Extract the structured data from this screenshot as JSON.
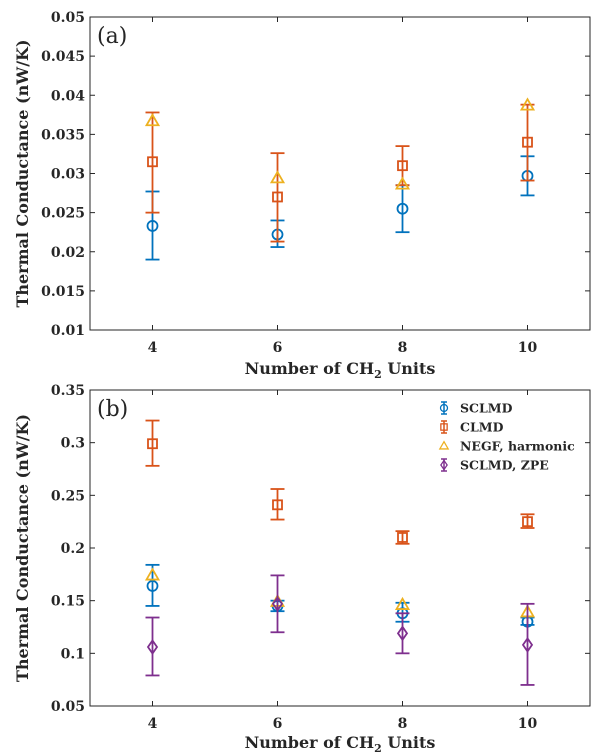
{
  "chart_data": [
    {
      "type": "scatter",
      "panel_label": "(a)",
      "xlabel_prefix": "Number of CH",
      "xlabel_sub": "2",
      "xlabel_suffix": " Units",
      "ylabel": "Thermal Conductance (nW/K)",
      "xlim": [
        3,
        11
      ],
      "ylim": [
        0.01,
        0.05
      ],
      "xticks": [
        "4",
        "6",
        "8",
        "10"
      ],
      "yticks": [
        "0.01",
        "0.015",
        "0.02",
        "0.025",
        "0.03",
        "0.035",
        "0.04",
        "0.045",
        "0.05"
      ],
      "series": [
        {
          "marker": "circle",
          "color": "#0072BD",
          "x": [
            4,
            6,
            8,
            10
          ],
          "y": [
            0.0233,
            0.0222,
            0.0255,
            0.0297
          ],
          "err_low": [
            0.019,
            0.0206,
            0.0225,
            0.0272
          ],
          "err_high": [
            0.0277,
            0.024,
            0.0285,
            0.0322
          ]
        },
        {
          "marker": "square",
          "color": "#D95319",
          "x": [
            4,
            6,
            8,
            10
          ],
          "y": [
            0.0315,
            0.027,
            0.031,
            0.034
          ],
          "err_low": [
            0.025,
            0.0213,
            0.0285,
            0.0291
          ],
          "err_high": [
            0.0378,
            0.0326,
            0.0335,
            0.0388
          ]
        },
        {
          "marker": "triangle",
          "color": "#EDB120",
          "x": [
            4,
            6,
            8,
            10
          ],
          "y": [
            0.0367,
            0.0294,
            0.0286,
            0.0387
          ]
        }
      ]
    },
    {
      "type": "scatter",
      "panel_label": "(b)",
      "xlabel_prefix": "Number of CH",
      "xlabel_sub": "2",
      "xlabel_suffix": " Units",
      "ylabel": "Thermal Conductance (nW/K)",
      "xlim": [
        3,
        11
      ],
      "ylim": [
        0.05,
        0.35
      ],
      "xticks": [
        "4",
        "6",
        "8",
        "10"
      ],
      "yticks": [
        "0.05",
        "0.1",
        "0.15",
        "0.2",
        "0.25",
        "0.3",
        "0.35"
      ],
      "legend_position": "top-right",
      "series": [
        {
          "name": "SCLMD",
          "marker": "circle",
          "color": "#0072BD",
          "x": [
            4,
            6,
            8,
            10
          ],
          "y": [
            0.164,
            0.145,
            0.138,
            0.13
          ],
          "err_low": [
            0.145,
            0.14,
            0.13,
            0.127
          ],
          "err_high": [
            0.184,
            0.15,
            0.148,
            0.134
          ]
        },
        {
          "name": "CLMD",
          "marker": "square",
          "color": "#D95319",
          "x": [
            4,
            6,
            8,
            10
          ],
          "y": [
            0.299,
            0.241,
            0.21,
            0.225
          ],
          "err_low": [
            0.278,
            0.227,
            0.204,
            0.219
          ],
          "err_high": [
            0.321,
            0.256,
            0.216,
            0.232
          ]
        },
        {
          "name": "NEGF, harmonic",
          "marker": "triangle",
          "color": "#EDB120",
          "x": [
            4,
            6,
            8,
            10
          ],
          "y": [
            0.174,
            0.149,
            0.146,
            0.139
          ]
        },
        {
          "name": "SCLMD, ZPE",
          "marker": "diamond",
          "color": "#7E2F8E",
          "x": [
            4,
            6,
            8,
            10
          ],
          "y": [
            0.106,
            0.147,
            0.119,
            0.108
          ],
          "err_low": [
            0.079,
            0.12,
            0.1,
            0.07
          ],
          "err_high": [
            0.134,
            0.174,
            0.138,
            0.147
          ]
        }
      ]
    }
  ]
}
